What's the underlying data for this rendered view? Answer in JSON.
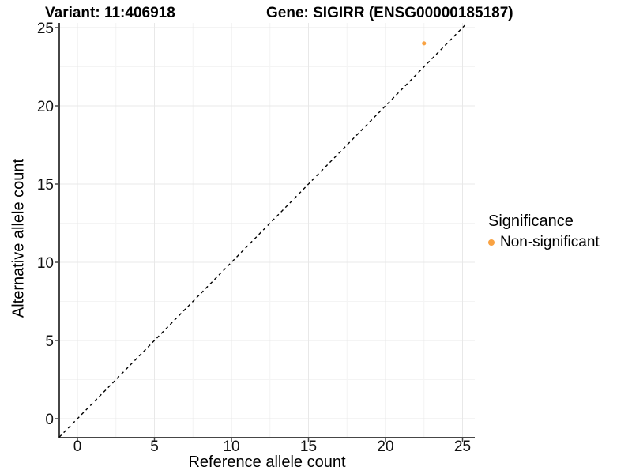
{
  "header": {
    "variant_title": "Variant: 11:406918",
    "gene_title": "Gene: SIGIRR (ENSG00000185187)"
  },
  "axes": {
    "x_label": "Reference allele count",
    "y_label": "Alternative allele count",
    "x_ticks": [
      0,
      5,
      10,
      15,
      20,
      25
    ],
    "y_ticks": [
      0,
      5,
      10,
      15,
      20,
      25
    ]
  },
  "legend": {
    "title": "Significance",
    "items": [
      {
        "label": "Non-significant",
        "marker": "circle-icon",
        "color": "#F9A242"
      }
    ]
  },
  "colors": {
    "point": "#F9A242",
    "axis_line": "#464646",
    "grid_major": "#e8e8e8",
    "grid_minor": "#f4f4f4",
    "reference_line": "#000000"
  },
  "chart_data": {
    "type": "scatter",
    "title": "Variant: 11:406918 | Gene: SIGIRR (ENSG00000185187)",
    "xlabel": "Reference allele count",
    "ylabel": "Alternative allele count",
    "xlim": [
      -1.2,
      26
    ],
    "ylim": [
      -1.2,
      26.3
    ],
    "x_ticks": [
      0,
      5,
      10,
      15,
      20,
      25
    ],
    "y_ticks": [
      0,
      5,
      10,
      15,
      20,
      25
    ],
    "grid": "major and minor gridlines, light gray on white panel",
    "legend_position": "right",
    "series": [
      {
        "name": "Non-significant",
        "color": "#F9A242",
        "points": [
          {
            "x": 22.5,
            "y": 24
          }
        ]
      }
    ],
    "reference_line": {
      "type": "identity y=x",
      "style": "dashed",
      "color": "#000000"
    }
  }
}
